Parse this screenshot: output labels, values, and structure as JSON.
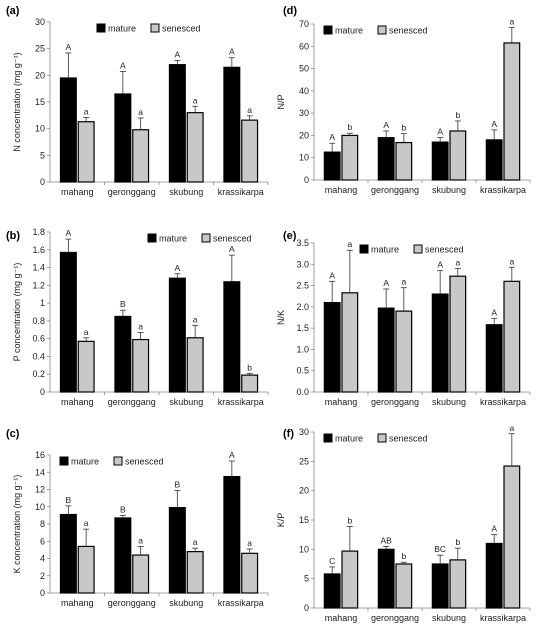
{
  "colors": {
    "mature": "#000000",
    "senesced": "#c8c8c8",
    "bar_stroke": "#000000",
    "axis": "#888888"
  },
  "chart_data": [
    {
      "panel": "(a)",
      "type": "bar",
      "ylabel": "N concentration (mg g⁻¹)",
      "ylim": [
        0,
        30
      ],
      "yticks": [
        "0",
        "5",
        "10",
        "15",
        "20",
        "25",
        "30"
      ],
      "categories": [
        "mahang",
        "geronggang",
        "skubung",
        "krassikarpa"
      ],
      "legend": {
        "placement": "top-center"
      },
      "series": [
        {
          "name": "mature",
          "values": [
            19.5,
            16.5,
            22.0,
            21.5
          ],
          "errors": [
            4.7,
            4.2,
            0.8,
            1.8
          ],
          "labels": [
            "A",
            "A",
            "A",
            "A"
          ]
        },
        {
          "name": "senesced",
          "values": [
            11.3,
            9.8,
            13.0,
            11.6
          ],
          "errors": [
            0.8,
            2.2,
            1.2,
            0.8
          ],
          "labels": [
            "a",
            "a",
            "a",
            "a"
          ]
        }
      ]
    },
    {
      "panel": "(b)",
      "type": "bar",
      "ylabel": "P concentration (mg g⁻¹)",
      "ylim": [
        0,
        1.8
      ],
      "yticks": [
        "0",
        "0.2",
        "0.4",
        "0.6",
        "0.8",
        "1",
        "1.2",
        "1.4",
        "1.6",
        "1.8"
      ],
      "categories": [
        "mahang",
        "geronggang",
        "skubung",
        "krassikarpa"
      ],
      "legend": {
        "placement": "top-right"
      },
      "series": [
        {
          "name": "mature",
          "values": [
            1.57,
            0.85,
            1.28,
            1.24
          ],
          "errors": [
            0.15,
            0.07,
            0.05,
            0.3
          ],
          "labels": [
            "A",
            "B",
            "A",
            "A"
          ]
        },
        {
          "name": "senesced",
          "values": [
            0.57,
            0.59,
            0.61,
            0.19
          ],
          "errors": [
            0.04,
            0.08,
            0.14,
            0.02
          ],
          "labels": [
            "a",
            "a",
            "a",
            "b"
          ]
        }
      ]
    },
    {
      "panel": "(c)",
      "type": "bar",
      "ylabel": "K concentration (mg g⁻¹)",
      "ylim": [
        0,
        16
      ],
      "yticks": [
        "0",
        "2",
        "4",
        "6",
        "8",
        "10",
        "12",
        "14",
        "16"
      ],
      "categories": [
        "mahang",
        "geronggang",
        "skubung",
        "krassikarpa"
      ],
      "legend": {
        "placement": "top-left"
      },
      "series": [
        {
          "name": "mature",
          "values": [
            9.1,
            8.7,
            9.9,
            13.5
          ],
          "errors": [
            1.0,
            0.3,
            2.0,
            1.8
          ],
          "labels": [
            "B",
            "B",
            "B",
            "A"
          ]
        },
        {
          "name": "senesced",
          "values": [
            5.4,
            4.4,
            4.8,
            4.6
          ],
          "errors": [
            2.0,
            1.0,
            0.4,
            0.5
          ],
          "labels": [
            "a",
            "a",
            "a",
            "a"
          ]
        }
      ]
    },
    {
      "panel": "(d)",
      "type": "bar",
      "ylabel": "N/P",
      "ylim": [
        0,
        70
      ],
      "yticks": [
        "0",
        "10",
        "20",
        "30",
        "40",
        "50",
        "60",
        "70"
      ],
      "categories": [
        "mahang",
        "geronggang",
        "skubung",
        "krassikarpa"
      ],
      "legend": {
        "placement": "top-left"
      },
      "series": [
        {
          "name": "mature",
          "values": [
            12.5,
            19.0,
            17.0,
            18.0
          ],
          "errors": [
            4.0,
            3.0,
            2.0,
            4.5
          ],
          "labels": [
            "A",
            "A",
            "A",
            "A"
          ]
        },
        {
          "name": "senesced",
          "values": [
            20.0,
            16.8,
            22.0,
            61.5
          ],
          "errors": [
            1.0,
            4.0,
            4.5,
            7.0
          ],
          "labels": [
            "b",
            "b",
            "b",
            "a"
          ]
        }
      ]
    },
    {
      "panel": "(e)",
      "type": "bar",
      "ylabel": "N/K",
      "ylim": [
        0,
        3.5
      ],
      "yticks": [
        "0.0",
        "0.5",
        "1.0",
        "1.5",
        "2.0",
        "2.5",
        "3.0",
        "3.5"
      ],
      "categories": [
        "mahang",
        "geronggang",
        "skubung",
        "krassikarpa"
      ],
      "legend": {
        "placement": "top-center"
      },
      "series": [
        {
          "name": "mature",
          "values": [
            2.1,
            1.97,
            2.3,
            1.58
          ],
          "errors": [
            0.5,
            0.45,
            0.55,
            0.15
          ],
          "labels": [
            "A",
            "A",
            "A",
            "A"
          ]
        },
        {
          "name": "senesced",
          "values": [
            2.33,
            1.9,
            2.72,
            2.6
          ],
          "errors": [
            1.0,
            0.55,
            0.18,
            0.33
          ],
          "labels": [
            "a",
            "a",
            "a",
            "a"
          ]
        }
      ]
    },
    {
      "panel": "(f)",
      "type": "bar",
      "ylabel": "K/P",
      "ylim": [
        0,
        30
      ],
      "yticks": [
        "0",
        "5",
        "10",
        "15",
        "20",
        "25",
        "30"
      ],
      "categories": [
        "mahang",
        "geronggang",
        "skubung",
        "krassikarpa"
      ],
      "legend": {
        "placement": "top-left"
      },
      "series": [
        {
          "name": "mature",
          "values": [
            5.8,
            10.0,
            7.5,
            11.0
          ],
          "errors": [
            1.2,
            0.5,
            1.5,
            1.5
          ],
          "labels": [
            "C",
            "AB",
            "BC",
            "A"
          ]
        },
        {
          "name": "senesced",
          "values": [
            9.7,
            7.5,
            8.2,
            24.2
          ],
          "errors": [
            4.2,
            0.3,
            2.0,
            5.5
          ],
          "labels": [
            "b",
            "b",
            "b",
            "a"
          ]
        }
      ]
    }
  ]
}
